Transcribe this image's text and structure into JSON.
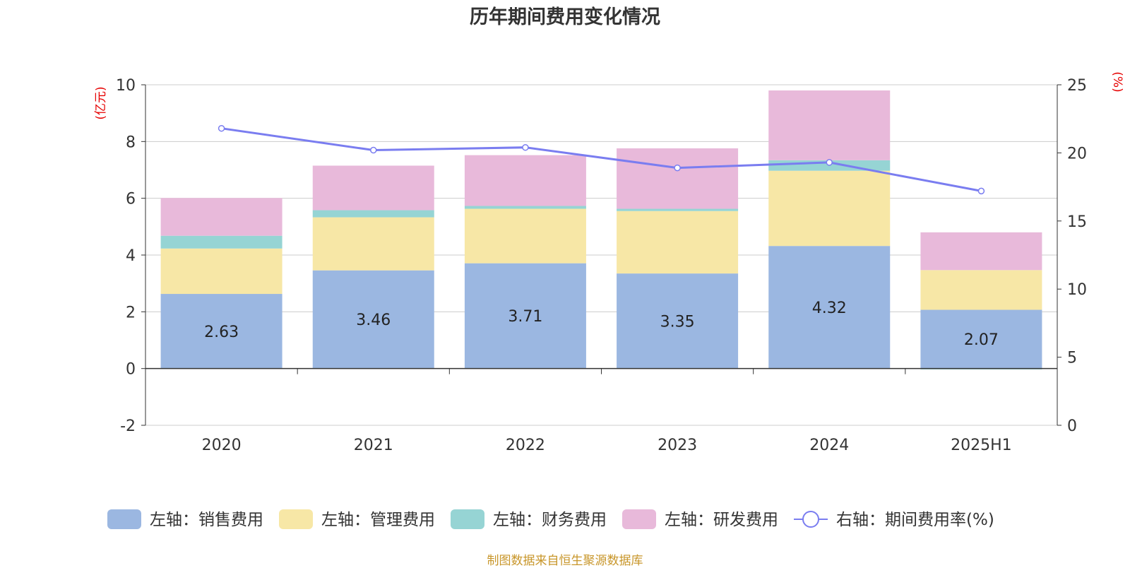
{
  "title": "历年期间费用变化情况",
  "source": "制图数据来自恒生聚源数据库",
  "chart_data": {
    "type": "bar",
    "stacked": true,
    "categories": [
      "2020",
      "2021",
      "2022",
      "2023",
      "2024",
      "2025H1"
    ],
    "left_axis": {
      "unit": "(亿元)",
      "ylim": [
        -2,
        10
      ],
      "ticks": [
        -2,
        0,
        2,
        4,
        6,
        8,
        10
      ]
    },
    "right_axis": {
      "unit": "(%)",
      "ylim": [
        0,
        25
      ],
      "ticks": [
        0,
        5,
        10,
        15,
        20,
        25
      ]
    },
    "series": [
      {
        "name": "左轴：销售费用",
        "axis": "left",
        "color": "#9bb7e1",
        "values": [
          2.63,
          3.46,
          3.71,
          3.35,
          4.32,
          2.07
        ],
        "labels": [
          "2.63",
          "3.46",
          "3.71",
          "3.35",
          "4.32",
          "2.07"
        ]
      },
      {
        "name": "左轴：管理费用",
        "axis": "left",
        "color": "#f7e7a6",
        "values": [
          1.6,
          1.87,
          1.92,
          2.2,
          2.65,
          1.4
        ]
      },
      {
        "name": "左轴：财务费用",
        "axis": "left",
        "color": "#96d4d4",
        "values": [
          0.45,
          0.25,
          0.1,
          0.08,
          0.37,
          -0.03
        ]
      },
      {
        "name": "左轴：研发费用",
        "axis": "left",
        "color": "#e8b9da",
        "values": [
          1.33,
          1.57,
          1.79,
          2.13,
          2.46,
          1.33
        ]
      },
      {
        "name": "右轴：期间费用率(%)",
        "axis": "right",
        "type": "line",
        "color": "#7a7df0",
        "values": [
          21.8,
          20.2,
          20.4,
          18.9,
          19.3,
          17.2
        ]
      }
    ],
    "grid": true,
    "legend": "bottom"
  }
}
